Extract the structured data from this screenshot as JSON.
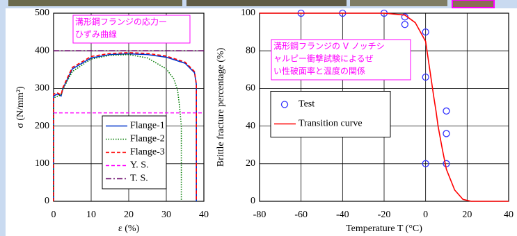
{
  "chart_data": [
    {
      "type": "line",
      "annotation_lines": [
        "溝形鋼フランジの応力ー",
        "ひずみ曲線"
      ],
      "xlabel": "ε (%)",
      "ylabel": "σ (N/mm²)",
      "xlim": [
        0,
        40
      ],
      "xticks": [
        0,
        10,
        20,
        30,
        40
      ],
      "ylim": [
        0,
        500
      ],
      "yticks": [
        0,
        100,
        200,
        300,
        400,
        500
      ],
      "grid": true,
      "legend": "lower center",
      "series": [
        {
          "name": "Flange-1",
          "color": "#0033cc",
          "style": "solid",
          "x": [
            0,
            0,
            1,
            2,
            2.5,
            5,
            10,
            15,
            20,
            25,
            30,
            35,
            37.5,
            38,
            38
          ],
          "values": [
            0,
            280,
            285,
            280,
            300,
            352,
            381,
            390,
            392,
            390,
            383,
            367,
            342,
            310,
            0
          ]
        },
        {
          "name": "Flange-2",
          "color": "#007a00",
          "style": "dotted",
          "x": [
            0,
            0,
            2,
            2.5,
            5,
            10,
            15,
            20,
            25,
            30,
            32,
            33,
            33.5,
            34,
            34
          ],
          "values": [
            0,
            275,
            283,
            298,
            345,
            378,
            388,
            390,
            381,
            352,
            325,
            295,
            255,
            200,
            0
          ]
        },
        {
          "name": "Flange-3",
          "color": "#ff0000",
          "style": "dashed",
          "x": [
            0,
            0,
            1,
            2,
            2.5,
            5,
            10,
            15,
            20,
            25,
            30,
            35,
            37.5,
            38,
            38
          ],
          "values": [
            0,
            285,
            288,
            283,
            303,
            356,
            385,
            393,
            395,
            393,
            386,
            370,
            345,
            312,
            0
          ]
        },
        {
          "name": "Y. S.",
          "color": "#ff00ff",
          "style": "dashed",
          "x": [
            0,
            40
          ],
          "values": [
            235,
            235
          ]
        },
        {
          "name": "T. S.",
          "color": "#660066",
          "style": "dashdot",
          "x": [
            0,
            40
          ],
          "values": [
            400,
            400
          ]
        }
      ]
    },
    {
      "type": "scatter",
      "annotation_lines": [
        "溝形鋼フランジの V ノッチシ",
        "ャルピー衝撃試験によるぜ",
        "い性破面率と温度の関係"
      ],
      "xlabel": "Temperature T (°C)",
      "ylabel": "Brittle fracture percentage  (%)",
      "xlim": [
        -80,
        40
      ],
      "xticks": [
        -80,
        -60,
        -40,
        -20,
        0,
        20,
        40
      ],
      "ylim": [
        0,
        100
      ],
      "yticks": [
        0,
        20,
        40,
        60,
        80,
        100
      ],
      "grid": true,
      "legend": "center left",
      "series": [
        {
          "name": "Test",
          "color": "#3333ff",
          "type": "scatter",
          "x": [
            -60,
            -40,
            -20,
            -10,
            -10,
            0,
            0,
            0,
            10,
            10,
            10
          ],
          "values": [
            100,
            100,
            100,
            98,
            94,
            90,
            66,
            20,
            48,
            36,
            20
          ]
        },
        {
          "name": "Transition curve",
          "color": "#ff0000",
          "type": "line",
          "style": "solid",
          "x": [
            -80,
            -20,
            -10,
            -5,
            0,
            2,
            4,
            5,
            6,
            8,
            10,
            14,
            18,
            22,
            40
          ],
          "values": [
            100,
            100,
            99,
            95,
            85,
            70,
            55,
            48,
            40,
            28,
            17,
            6,
            1,
            0,
            0
          ]
        }
      ]
    }
  ]
}
